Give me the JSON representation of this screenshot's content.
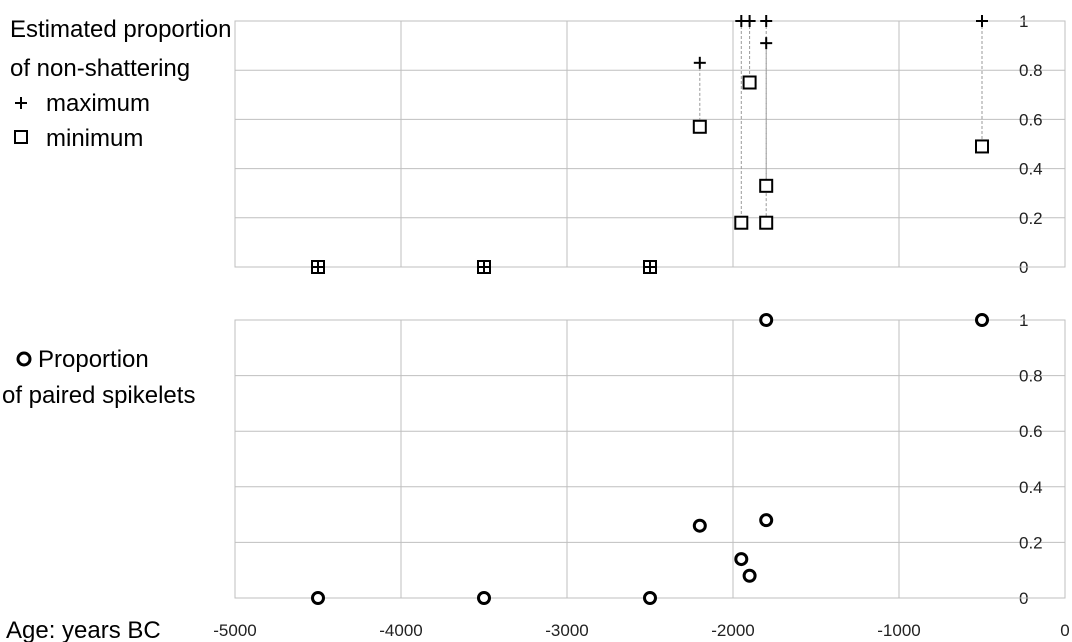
{
  "chart_data": [
    {
      "type": "scatter",
      "legend": {
        "lines": [
          "Estimated proportion",
          "of non-shattering"
        ],
        "entries": [
          {
            "symbol": "+",
            "label": "maximum"
          },
          {
            "symbol": "□",
            "label": "minimum"
          }
        ]
      },
      "xlim": [
        -5000,
        0
      ],
      "ylim": [
        0,
        1
      ],
      "x_ticks": [
        -5000,
        -4000,
        -3000,
        -2000,
        -1000,
        0
      ],
      "y_ticks": [
        0,
        0.2,
        0.4,
        0.6,
        0.8,
        1
      ],
      "y_tick_labels": [
        "0",
        "0.2",
        "0.4",
        "0.6",
        "0.8",
        "1"
      ],
      "grid": true,
      "series": [
        {
          "name": "maximum",
          "marker": "plus",
          "x": [
            -4500,
            -3500,
            -2500,
            -2200,
            -1950,
            -1900,
            -1800,
            -1800,
            -500
          ],
          "y": [
            0,
            0,
            0,
            0.83,
            1,
            1,
            1,
            0.91,
            1
          ]
        },
        {
          "name": "minimum",
          "marker": "square",
          "x": [
            -4500,
            -3500,
            -2500,
            -2200,
            -1950,
            -1900,
            -1800,
            -1800,
            -500
          ],
          "y": [
            0,
            0,
            0,
            0.57,
            0.18,
            0.75,
            0.33,
            0.18,
            0.49
          ]
        }
      ]
    },
    {
      "type": "scatter",
      "legend": {
        "lines": [
          "Proportion",
          "of paired spikelets"
        ],
        "entries": []
      },
      "xlabel": "Age: years BC",
      "xlim": [
        -5000,
        0
      ],
      "ylim": [
        0,
        1
      ],
      "x_ticks": [
        -5000,
        -4000,
        -3000,
        -2000,
        -1000,
        0
      ],
      "x_tick_labels": [
        "-5000",
        "-4000",
        "-3000",
        "-2000",
        "-1000",
        "0"
      ],
      "y_ticks": [
        0,
        0.2,
        0.4,
        0.6,
        0.8,
        1
      ],
      "y_tick_labels": [
        "0",
        "0.2",
        "0.4",
        "0.6",
        "0.8",
        "1"
      ],
      "grid": true,
      "series": [
        {
          "name": "Proportion of paired spikelets",
          "marker": "circle",
          "x": [
            -4500,
            -3500,
            -2500,
            -2200,
            -1950,
            -1900,
            -1800,
            -1800,
            -500
          ],
          "y": [
            0,
            0,
            0,
            0.26,
            0.14,
            0.08,
            0.28,
            1,
            1
          ]
        }
      ]
    }
  ]
}
